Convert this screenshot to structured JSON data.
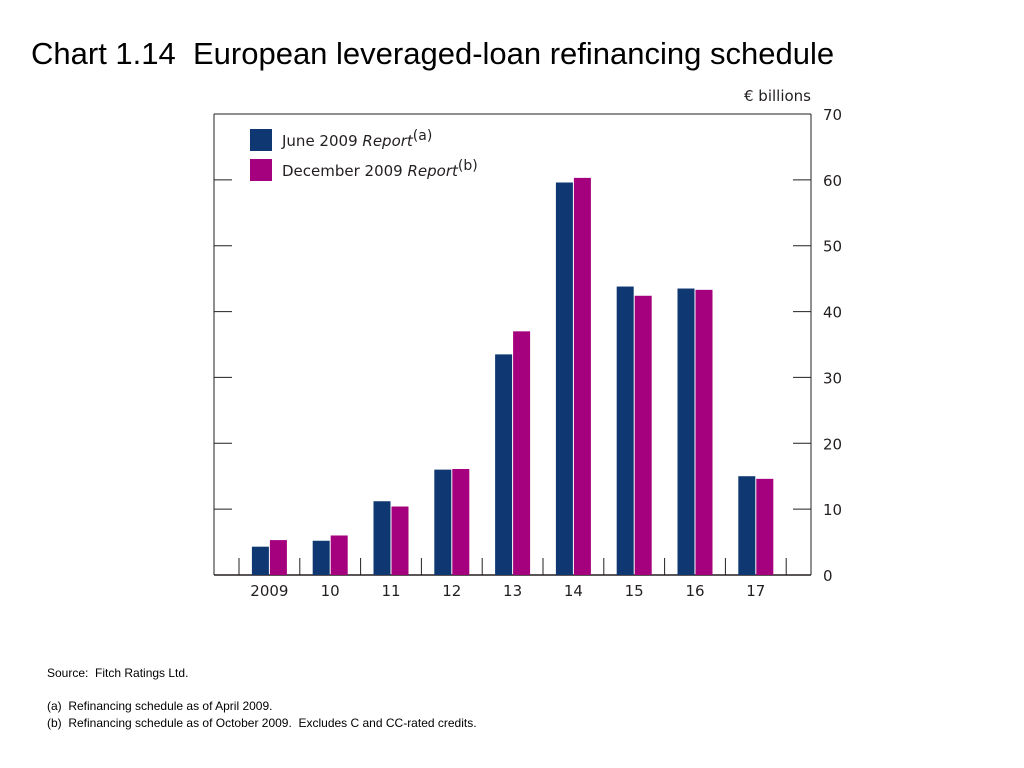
{
  "header": {
    "title": "Chart 1.14  European leveraged-loan refinancing schedule"
  },
  "chart_data": {
    "type": "bar",
    "unit_label": "€ billions",
    "categories": [
      "2009",
      "10",
      "11",
      "12",
      "13",
      "14",
      "15",
      "16",
      "17"
    ],
    "series": [
      {
        "name": "June 2009",
        "name_italic": "Report",
        "name_sup": "(a)",
        "color": "#0f3872",
        "values": [
          4.3,
          5.2,
          11.2,
          16.0,
          33.5,
          59.6,
          43.8,
          43.5,
          15.0
        ]
      },
      {
        "name": "December 2009",
        "name_italic": "Report",
        "name_sup": "(b)",
        "color": "#a5007e",
        "values": [
          5.3,
          6.0,
          10.4,
          16.1,
          37.0,
          60.3,
          42.4,
          43.3,
          14.6
        ]
      }
    ],
    "ylim": [
      0,
      70
    ],
    "yticks": [
      "0",
      "10",
      "20",
      "30",
      "40",
      "50",
      "60",
      "70"
    ],
    "ytick_values": [
      0,
      10,
      20,
      30,
      40,
      50,
      60,
      70
    ],
    "legend_position": "top-left",
    "grid": false
  },
  "footnotes": {
    "source": "Source:  Fitch Ratings Ltd.",
    "note_a": "(a)  Refinancing schedule as of April 2009.",
    "note_b": "(b)  Refinancing schedule as of October 2009.  Excludes C and CC-rated credits."
  }
}
